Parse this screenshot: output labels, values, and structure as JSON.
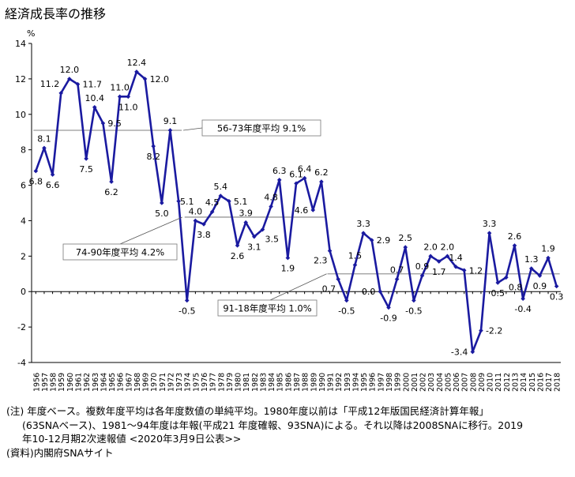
{
  "chart_data": {
    "type": "line",
    "title": "経済成長率の推移",
    "ylabel": "%",
    "ylim": [
      -4,
      14
    ],
    "yticks": [
      -4,
      -2,
      0,
      2,
      4,
      6,
      8,
      10,
      12,
      14
    ],
    "grid": false,
    "x": [
      "1956",
      "1957",
      "1958",
      "1959",
      "1960",
      "1961",
      "1962",
      "1963",
      "1964",
      "1965",
      "1966",
      "1967",
      "1968",
      "1969",
      "1970",
      "1971",
      "1972",
      "1973",
      "1974",
      "1975",
      "1976",
      "1977",
      "1978",
      "1979",
      "1980",
      "1981",
      "1982",
      "1983",
      "1984",
      "1985",
      "1986",
      "1987",
      "1988",
      "1989",
      "1990",
      "1991",
      "1992",
      "1993",
      "1994",
      "1995",
      "1996",
      "1997",
      "1998",
      "1999",
      "2000",
      "2001",
      "2002",
      "2003",
      "2004",
      "2005",
      "2006",
      "2007",
      "2008",
      "2009",
      "2010",
      "2011",
      "2012",
      "2013",
      "2014",
      "2015",
      "2016",
      "2017",
      "2018"
    ],
    "series": [
      {
        "color": "#1a1aa0",
        "values": [
          6.8,
          8.1,
          6.6,
          11.2,
          12.0,
          11.7,
          7.5,
          10.4,
          9.5,
          6.2,
          11.0,
          11.0,
          12.4,
          12.0,
          8.2,
          5.0,
          9.1,
          5.1,
          -0.5,
          4.0,
          3.8,
          4.5,
          5.4,
          5.1,
          2.6,
          3.9,
          3.1,
          3.5,
          4.8,
          6.3,
          1.9,
          6.1,
          6.4,
          4.6,
          6.2,
          2.3,
          0.7,
          -0.5,
          1.5,
          3.3,
          2.9,
          0.0,
          -0.9,
          0.7,
          2.5,
          -0.5,
          0.9,
          2.0,
          1.7,
          2.0,
          1.4,
          1.2,
          -3.4,
          -2.2,
          3.3,
          0.5,
          0.8,
          2.6,
          -0.4,
          1.3,
          0.9,
          1.9,
          0.3
        ]
      }
    ],
    "data_labels": [
      {
        "x": "1956",
        "text": "6.8",
        "pos": "below"
      },
      {
        "x": "1957",
        "text": "8.1",
        "pos": "above"
      },
      {
        "x": "1958",
        "text": "6.6",
        "pos": "below"
      },
      {
        "x": "1959",
        "text": "11.2",
        "pos": "above-left"
      },
      {
        "x": "1960",
        "text": "12.0",
        "pos": "above"
      },
      {
        "x": "1961",
        "text": "11.7",
        "pos": "right"
      },
      {
        "x": "1962",
        "text": "7.5",
        "pos": "below"
      },
      {
        "x": "1963",
        "text": "10.4",
        "pos": "above"
      },
      {
        "x": "1964",
        "text": "9.5",
        "pos": "right"
      },
      {
        "x": "1965",
        "text": "6.2",
        "pos": "below"
      },
      {
        "x": "1966",
        "text": "11.0",
        "pos": "above"
      },
      {
        "x": "1967",
        "text": "11.0",
        "pos": "below"
      },
      {
        "x": "1968",
        "text": "12.4",
        "pos": "above"
      },
      {
        "x": "1969",
        "text": "12.0",
        "pos": "right"
      },
      {
        "x": "1970",
        "text": "8.2",
        "pos": "below"
      },
      {
        "x": "1971",
        "text": "5.0",
        "pos": "below"
      },
      {
        "x": "1972",
        "text": "9.1",
        "pos": "above"
      },
      {
        "x": "1974",
        "text": "-0.5",
        "pos": "below"
      },
      {
        "x": "1974",
        "text": "5.1",
        "pos": "above-left-high"
      },
      {
        "x": "1975",
        "text": "4.0",
        "pos": "above"
      },
      {
        "x": "1976",
        "text": "3.8",
        "pos": "below"
      },
      {
        "x": "1977",
        "text": "4.5",
        "pos": "above"
      },
      {
        "x": "1978",
        "text": "5.4",
        "pos": "above"
      },
      {
        "x": "1979",
        "text": "5.1",
        "pos": "right"
      },
      {
        "x": "1980",
        "text": "2.6",
        "pos": "below"
      },
      {
        "x": "1981",
        "text": "3.9",
        "pos": "above"
      },
      {
        "x": "1982",
        "text": "3.1",
        "pos": "below"
      },
      {
        "x": "1983",
        "text": "3.5",
        "pos": "below-right"
      },
      {
        "x": "1984",
        "text": "4.8",
        "pos": "above"
      },
      {
        "x": "1985",
        "text": "6.3",
        "pos": "above"
      },
      {
        "x": "1986",
        "text": "1.9",
        "pos": "below"
      },
      {
        "x": "1987",
        "text": "6.1",
        "pos": "above"
      },
      {
        "x": "1988",
        "text": "6.4",
        "pos": "above"
      },
      {
        "x": "1989",
        "text": "4.6",
        "pos": "left"
      },
      {
        "x": "1990",
        "text": "6.2",
        "pos": "above"
      },
      {
        "x": "1991",
        "text": "2.3",
        "pos": "below-left"
      },
      {
        "x": "1992",
        "text": "0.7",
        "pos": "below-left"
      },
      {
        "x": "1993",
        "text": "-0.5",
        "pos": "below"
      },
      {
        "x": "1994",
        "text": "1.5",
        "pos": "above"
      },
      {
        "x": "1995",
        "text": "3.3",
        "pos": "above"
      },
      {
        "x": "1996",
        "text": "2.9",
        "pos": "right"
      },
      {
        "x": "1997",
        "text": "0.0",
        "pos": "left"
      },
      {
        "x": "1998",
        "text": "-0.9",
        "pos": "below"
      },
      {
        "x": "1999",
        "text": "0.7",
        "pos": "above"
      },
      {
        "x": "2000",
        "text": "2.5",
        "pos": "above"
      },
      {
        "x": "2001",
        "text": "-0.5",
        "pos": "below"
      },
      {
        "x": "2002",
        "text": "0.9",
        "pos": "above"
      },
      {
        "x": "2003",
        "text": "2.0",
        "pos": "above"
      },
      {
        "x": "2004",
        "text": "1.7",
        "pos": "below"
      },
      {
        "x": "2005",
        "text": "2.0",
        "pos": "above"
      },
      {
        "x": "2006",
        "text": "1.4",
        "pos": "above"
      },
      {
        "x": "2007",
        "text": "1.2",
        "pos": "right"
      },
      {
        "x": "2008",
        "text": "-3.4",
        "pos": "left"
      },
      {
        "x": "2009",
        "text": "-2.2",
        "pos": "right"
      },
      {
        "x": "2010",
        "text": "3.3",
        "pos": "above"
      },
      {
        "x": "2011",
        "text": "0.5",
        "pos": "below"
      },
      {
        "x": "2012",
        "text": "0.8",
        "pos": "below-right"
      },
      {
        "x": "2013",
        "text": "2.6",
        "pos": "above"
      },
      {
        "x": "2014",
        "text": "-0.4",
        "pos": "below"
      },
      {
        "x": "2015",
        "text": "1.3",
        "pos": "above"
      },
      {
        "x": "2016",
        "text": "0.9",
        "pos": "below"
      },
      {
        "x": "2017",
        "text": "1.9",
        "pos": "above"
      },
      {
        "x": "2018",
        "text": "0.3",
        "pos": "below"
      }
    ],
    "reference_lines": [
      {
        "label": "56-73年度平均 9.1%",
        "value": 9.1,
        "from": "1956",
        "to": "1973"
      },
      {
        "label": "74-90年度平均 4.2%",
        "value": 4.2,
        "from": "1974",
        "to": "1990"
      },
      {
        "label": "91-18年度平均 1.0%",
        "value": 1.0,
        "from": "1991",
        "to": "2018"
      }
    ]
  },
  "footnotes": [
    "(注) 年度ベース。複数年度平均は各年度数値の単純平均。1980年度以前は「平成12年版国民経済計算年報」",
    "(63SNAベース)、1981～94年度は年報(平成21 年度確報、93SNA)による。それ以降は2008SNAに移行。2019",
    "年10-12月期2次速報値 <2020年3月9日公表>>",
    "(資料)内閣府SNAサイト"
  ],
  "colors": {
    "line": "#1a1aa0",
    "marker": "#1a1aa0",
    "average_line": "#999999",
    "axis": "#000000"
  }
}
